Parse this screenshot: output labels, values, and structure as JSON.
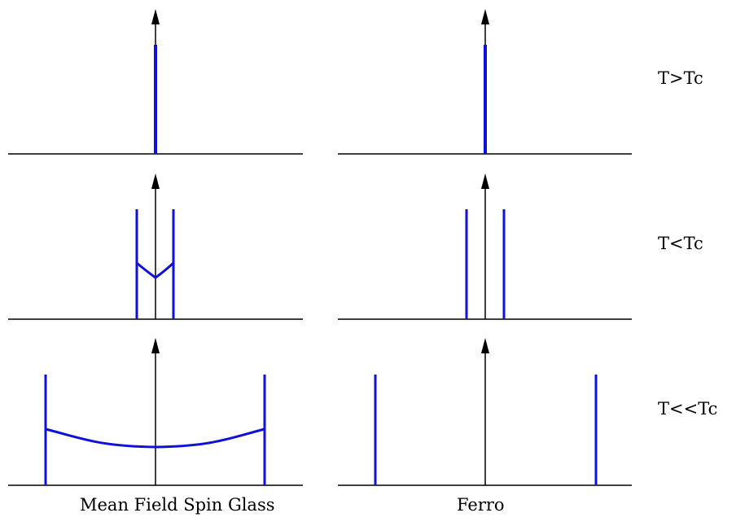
{
  "rows": [
    {
      "label": "T>Tc"
    },
    {
      "label": "T<Tc"
    },
    {
      "label": "T<<Tc"
    }
  ],
  "columns": [
    {
      "label": "Mean Field Spin Glass"
    },
    {
      "label": "Ferro"
    }
  ],
  "panels": {
    "spin_glass": [
      {
        "row": "T>Tc",
        "peaks": "single central delta",
        "continuum": false
      },
      {
        "row": "T<Tc",
        "peaks": "two symmetric deltas near center",
        "continuum": true
      },
      {
        "row": "T<<Tc",
        "peaks": "two symmetric deltas far apart",
        "continuum": true
      }
    ],
    "ferro": [
      {
        "row": "T>Tc",
        "peaks": "single central delta",
        "continuum": false
      },
      {
        "row": "T<Tc",
        "peaks": "two symmetric deltas near center",
        "continuum": false
      },
      {
        "row": "T<<Tc",
        "peaks": "two symmetric deltas far apart",
        "continuum": false
      }
    ]
  },
  "colors": {
    "axis": "#000000",
    "distribution": "#1010dd"
  }
}
